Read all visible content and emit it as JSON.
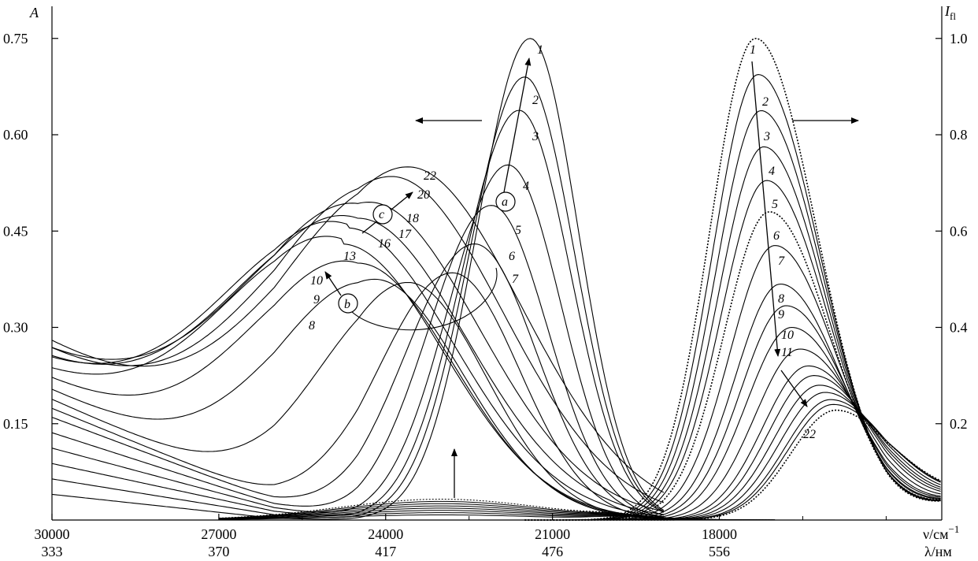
{
  "chart_data": {
    "type": "line",
    "title": "",
    "left_axis": {
      "title": "A",
      "ticks": [
        0.15,
        0.3,
        0.45,
        0.6,
        0.75
      ],
      "tick_labels": [
        "0.15",
        "0.30",
        "0.45",
        "0.60",
        "0.75"
      ],
      "ylim": [
        0.0,
        0.8
      ]
    },
    "right_axis": {
      "title": "I",
      "title_sub": "fl",
      "ticks": [
        0.2,
        0.4,
        0.6,
        0.8,
        1.0
      ],
      "tick_labels": [
        "0.2",
        "0.4",
        "0.6",
        "0.8",
        "1.0"
      ],
      "ylim": [
        0.0,
        1.0667
      ]
    },
    "x_axis": {
      "unit_label": "ν/см",
      "unit_sup": "−1",
      "lambda_label": "λ/нм",
      "xlim": [
        30000,
        14000
      ],
      "ticks": [
        30000,
        27000,
        24000,
        21000,
        18000
      ],
      "tick_labels": [
        "30000",
        "27000",
        "24000",
        "21000",
        "18000"
      ],
      "lambda_labels": [
        "333",
        "370",
        "417",
        "476",
        "556"
      ]
    },
    "absorption_series": [
      {
        "name": "1",
        "peak_x": 21400,
        "peak_a": 0.75,
        "width": 1350,
        "tail": 0.01
      },
      {
        "name": "2",
        "peak_x": 21500,
        "peak_a": 0.69,
        "width": 1400,
        "tail": 0.03
      },
      {
        "name": "3",
        "peak_x": 21600,
        "peak_a": 0.638,
        "width": 1450,
        "tail": 0.05
      },
      {
        "name": "4",
        "peak_x": 21800,
        "peak_a": 0.553,
        "width": 1500,
        "tail": 0.07
      },
      {
        "name": "5",
        "peak_x": 22100,
        "peak_a": 0.49,
        "width": 1600,
        "tail": 0.09
      },
      {
        "name": "6",
        "peak_x": 22400,
        "peak_a": 0.43,
        "width": 1750,
        "tail": 0.11
      },
      {
        "name": "7",
        "peak_x": 22800,
        "peak_a": 0.385,
        "width": 1900,
        "tail": 0.12
      },
      {
        "name": "8",
        "peak_x": 23600,
        "peak_a": 0.37,
        "width": 2200,
        "tail": 0.13
      },
      {
        "name": "9",
        "peak_x": 24200,
        "peak_a": 0.375,
        "width": 2500,
        "tail": 0.14
      },
      {
        "name": "10",
        "peak_x": 24500,
        "peak_a": 0.4,
        "width": 2700,
        "tail": 0.15
      },
      {
        "name": "13",
        "peak_x": 24800,
        "peak_a": 0.43,
        "width": 2900,
        "tail": 0.15
      },
      {
        "name": "16",
        "peak_x": 24700,
        "peak_a": 0.455,
        "width": 3000,
        "tail": 0.16
      },
      {
        "name": "17",
        "peak_x": 24500,
        "peak_a": 0.47,
        "width": 3050,
        "tail": 0.16
      },
      {
        "name": "18",
        "peak_x": 24300,
        "peak_a": 0.495,
        "width": 3100,
        "tail": 0.17
      },
      {
        "name": "20",
        "peak_x": 23900,
        "peak_a": 0.535,
        "width": 3150,
        "tail": 0.17
      },
      {
        "name": "22",
        "peak_x": 23600,
        "peak_a": 0.55,
        "width": 3200,
        "tail": 0.18
      }
    ],
    "fluorescence_series": [
      {
        "name": "1",
        "peak_x": 17350,
        "peak_i": 1.0
      },
      {
        "name": "2",
        "peak_x": 17300,
        "peak_i": 0.925
      },
      {
        "name": "3",
        "peak_x": 17250,
        "peak_i": 0.85
      },
      {
        "name": "4",
        "peak_x": 17200,
        "peak_i": 0.775
      },
      {
        "name": "5",
        "peak_x": 17150,
        "peak_i": 0.705
      },
      {
        "name": "6",
        "peak_x": 17100,
        "peak_i": 0.64
      },
      {
        "name": "7",
        "peak_x": 17000,
        "peak_i": 0.57
      },
      {
        "name": "8",
        "peak_x": 16900,
        "peak_i": 0.49
      },
      {
        "name": "9",
        "peak_x": 16800,
        "peak_i": 0.445
      },
      {
        "name": "10",
        "peak_x": 16700,
        "peak_i": 0.4
      },
      {
        "name": "11",
        "peak_x": 16550,
        "peak_i": 0.355
      },
      {
        "name": "",
        "peak_x": 16400,
        "peak_i": 0.32
      },
      {
        "name": "",
        "peak_x": 16300,
        "peak_i": 0.3
      },
      {
        "name": "",
        "peak_x": 16200,
        "peak_i": 0.28
      },
      {
        "name": "",
        "peak_x": 16100,
        "peak_i": 0.265
      },
      {
        "name": "",
        "peak_x": 16000,
        "peak_i": 0.25
      },
      {
        "name": "",
        "peak_x": 15950,
        "peak_i": 0.24
      },
      {
        "name": "22",
        "peak_x": 15900,
        "peak_i": 0.228
      }
    ],
    "annotations": {
      "a": "a",
      "b": "b",
      "c": "c",
      "arrow_left": "A",
      "arrow_right": "I_fl"
    }
  }
}
